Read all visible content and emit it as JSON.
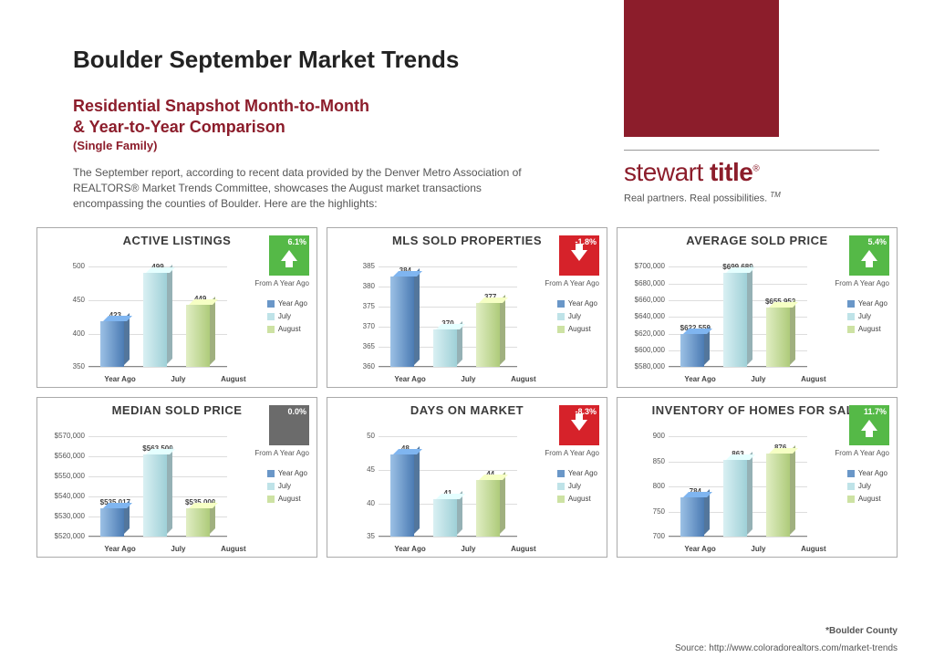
{
  "header": {
    "title": "Boulder September Market Trends",
    "subtitle_line1": "Residential Snapshot Month-to-Month",
    "subtitle_line2": "& Year-to-Year Comparison",
    "subtitle_small": "(Single Family)",
    "description": "The September report, according to recent data provided by the Denver Metro Association of REALTORS® Market Trends Committee, showcases the August market transactions encompassing the counties of Boulder. Here are the highlights:"
  },
  "brand": {
    "block_color": "#8c1d2b",
    "name_part1": "stewart ",
    "name_part2": "title",
    "tagline": "Real partners. Real possibilities.",
    "tm": "TM"
  },
  "legend_labels": [
    "Year Ago",
    "July",
    "August"
  ],
  "series_colors": {
    "year_ago_front": "#6a97c8",
    "year_ago_grad": "linear-gradient(to right,#9cc1e6,#4b7bb3)",
    "july_front": "#bfe3e8",
    "july_grad": "linear-gradient(to right,#d9f0f3,#9fd0d7)",
    "august_front": "#cde2a3",
    "august_grad": "linear-gradient(to right,#e1eec4,#aecb7a)"
  },
  "badge_colors": {
    "up": "#55b947",
    "down": "#d6222a",
    "flat": "#6b6b6b"
  },
  "from_label": "From A Year Ago",
  "x_categories": [
    "Year Ago",
    "July",
    "August"
  ],
  "panels": [
    {
      "title": "ACTIVE LISTINGS",
      "change_pct": "6.1%",
      "change_dir": "up",
      "y_ticks": [
        "500",
        "450",
        "400",
        "350"
      ],
      "y_min": 350,
      "y_max": 500,
      "values": [
        423,
        499,
        449
      ],
      "value_labels": [
        "423",
        "499",
        "449"
      ]
    },
    {
      "title": "MLS SOLD PROPERTIES",
      "change_pct": "-1.8%",
      "change_dir": "down",
      "y_ticks": [
        "385",
        "380",
        "375",
        "370",
        "365",
        "360"
      ],
      "y_min": 360,
      "y_max": 385,
      "values": [
        384,
        370,
        377
      ],
      "value_labels": [
        "384",
        "370",
        "377"
      ]
    },
    {
      "title": "AVERAGE SOLD PRICE",
      "change_pct": "5.4%",
      "change_dir": "up",
      "y_ticks": [
        "$700,000",
        "$680,000",
        "$660,000",
        "$640,000",
        "$620,000",
        "$600,000",
        "$580,000"
      ],
      "y_min": 580000,
      "y_max": 700000,
      "values": [
        622559,
        699689,
        655952
      ],
      "value_labels": [
        "$622,559",
        "$699,689",
        "$655,952"
      ]
    },
    {
      "title": "MEDIAN SOLD PRICE",
      "change_pct": "0.0%",
      "change_dir": "flat",
      "y_ticks": [
        "$570,000",
        "$560,000",
        "$550,000",
        "$540,000",
        "$530,000",
        "$520,000"
      ],
      "y_min": 520000,
      "y_max": 570000,
      "values": [
        535017,
        563500,
        535000
      ],
      "value_labels": [
        "$535,017",
        "$563,500",
        "$535,000"
      ]
    },
    {
      "title": "DAYS ON MARKET",
      "change_pct": "-8.3%",
      "change_dir": "down",
      "y_ticks": [
        "50",
        "45",
        "40",
        "35"
      ],
      "y_min": 35,
      "y_max": 50,
      "values": [
        48,
        41,
        44
      ],
      "value_labels": [
        "48",
        "41",
        "44"
      ]
    },
    {
      "title": "INVENTORY OF HOMES FOR SALE",
      "change_pct": "11.7%",
      "change_dir": "up",
      "y_ticks": [
        "900",
        "850",
        "800",
        "750",
        "700"
      ],
      "y_min": 700,
      "y_max": 900,
      "values": [
        784,
        863,
        876
      ],
      "value_labels": [
        "784",
        "863",
        "876"
      ]
    }
  ],
  "footer": {
    "county": "*Boulder County",
    "source": "Source: http://www.coloradorealtors.com/market-trends"
  }
}
